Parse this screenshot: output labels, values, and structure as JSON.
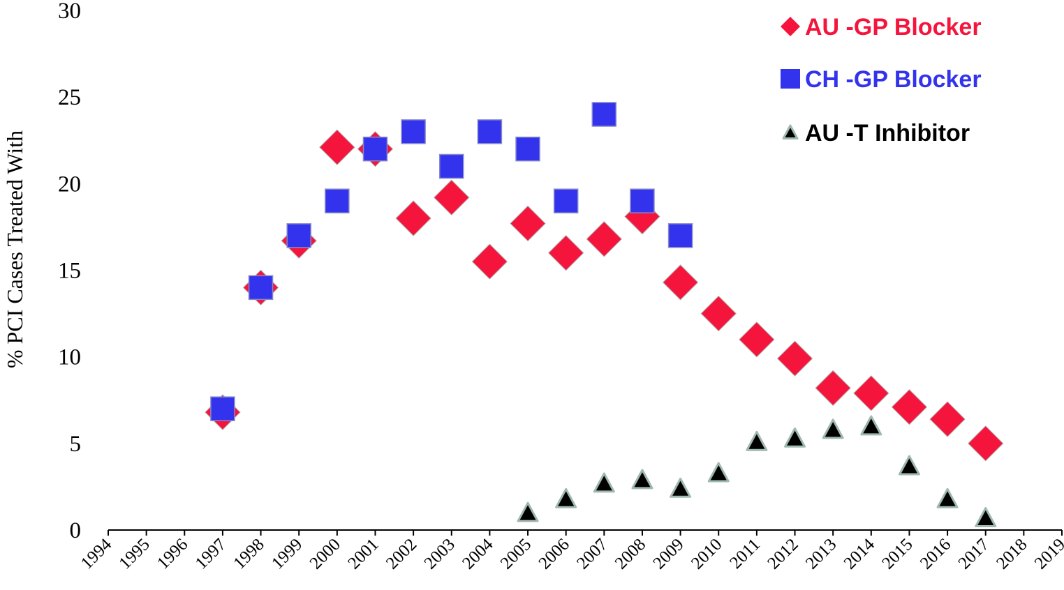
{
  "chart_data": {
    "type": "scatter",
    "title": "",
    "xlabel": "",
    "ylabel": "% PCI Cases Treated With",
    "xlim": [
      1994,
      2019
    ],
    "ylim": [
      0,
      30
    ],
    "x_ticks": [
      "1994",
      "1995",
      "1996",
      "1997",
      "1998",
      "1999",
      "2000",
      "2001",
      "2002",
      "2003",
      "2004",
      "2005",
      "2006",
      "2007",
      "2008",
      "2009",
      "2010",
      "2011",
      "2012",
      "2013",
      "2014",
      "2015",
      "2016",
      "2017",
      "2018",
      "2019"
    ],
    "y_ticks": [
      "0",
      "5",
      "10",
      "15",
      "20",
      "25",
      "30"
    ],
    "grid": false,
    "legend_position": "top-right",
    "series": [
      {
        "name": "AU -GP Blocker",
        "marker": "diamond",
        "color": "#f5143c",
        "x": [
          1997,
          1998,
          1999,
          2000,
          2001,
          2002,
          2003,
          2004,
          2005,
          2006,
          2007,
          2008,
          2009,
          2010,
          2011,
          2012,
          2013,
          2014,
          2015,
          2016,
          2017
        ],
        "y": [
          6.8,
          14.0,
          16.7,
          22.1,
          22.0,
          18.0,
          19.2,
          15.5,
          17.7,
          16.0,
          16.8,
          18.1,
          14.3,
          12.5,
          11.0,
          9.9,
          8.2,
          7.9,
          7.1,
          6.4,
          5.0
        ]
      },
      {
        "name": "CH -GP Blocker",
        "marker": "square",
        "color": "#3333ee",
        "x": [
          1997,
          1998,
          1999,
          2000,
          2001,
          2002,
          2003,
          2004,
          2005,
          2006,
          2007,
          2008,
          2009
        ],
        "y": [
          7.0,
          14.0,
          17.0,
          19.0,
          22.0,
          23.0,
          21.0,
          23.0,
          22.0,
          19.0,
          24.0,
          19.0,
          17.0
        ]
      },
      {
        "name": "AU -T Inhibitor",
        "marker": "triangle",
        "color": "#000000",
        "x": [
          2005,
          2006,
          2007,
          2008,
          2009,
          2010,
          2011,
          2012,
          2013,
          2014,
          2015,
          2016,
          2017
        ],
        "y": [
          1.0,
          1.8,
          2.7,
          2.9,
          2.4,
          3.3,
          5.1,
          5.3,
          5.8,
          6.0,
          3.7,
          1.8,
          0.7
        ]
      }
    ]
  }
}
